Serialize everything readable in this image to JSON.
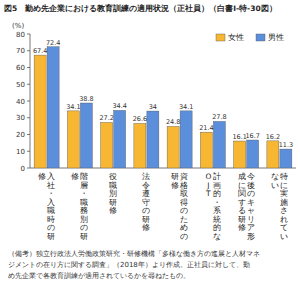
{
  "chart_data": {
    "type": "bar",
    "title": "図5　勤め先企業における教育訓練の適用状況（正社員）（白書Ⅰ-特-30図）",
    "y_label": "(%)",
    "categories": [
      "入社・入職時の研修",
      "階層・職務別の研修",
      "役職別研修",
      "法令遵守の研修",
      "資格取得のための研修",
      "計画的・系統的なOJT",
      "今後のキャリア形成に関する研修",
      "特に実施されていない"
    ],
    "series": [
      {
        "name": "女性",
        "color": "#f7b733",
        "values": [
          67.4,
          34.1,
          27.2,
          26.6,
          24.8,
          21.4,
          16.1,
          16.2
        ]
      },
      {
        "name": "男性",
        "color": "#5b8fdc",
        "values": [
          72.4,
          38.8,
          34.4,
          34.0,
          34.1,
          27.8,
          16.7,
          11.3
        ]
      }
    ],
    "ylim": [
      0,
      80
    ],
    "yticks": [
      0,
      10,
      20,
      30,
      40,
      50,
      60,
      70,
      80
    ],
    "grid": false,
    "legend": "top-right",
    "data_labels": true,
    "note": "（備考）独立行政法人労働政策研究・研修機構「多様な働き方の進展と人材マネジメントの在り方に関する調査」（2018年）より作成。正社員に対して、勤め先企業で各教育訓練が適用されているかを尋ねたもの。"
  }
}
